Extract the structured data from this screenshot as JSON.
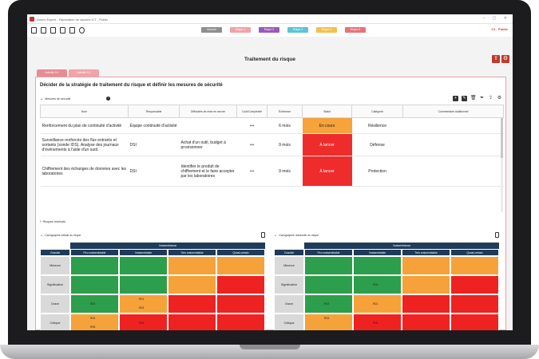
{
  "window": {
    "title": "Arinex Expert - Fabrication de vaccins ICT - Public"
  },
  "nav_tabs": [
    {
      "label": "Accueil",
      "color": "#8e8e8e"
    },
    {
      "label": "Etape 1",
      "color": "#f1a3a8"
    },
    {
      "label": "Etape 2",
      "color": "#9b59b6"
    },
    {
      "label": "Etape 3",
      "color": "#5dc3d6"
    },
    {
      "label": "Etape 4",
      "color": "#f2c14e"
    },
    {
      "label": "Etape 5",
      "color": "#e8727a"
    }
  ],
  "version": "C1 - Public",
  "page_title": "Traitement du risque",
  "sub_tabs": [
    "Activité 5.1",
    "Activité 5.2"
  ],
  "card_title": "Décider de la stratégie de traitement du risque et définir les mesures de sécurité",
  "section_measures": "Mesures de sécurité",
  "table": {
    "headers": [
      "Nom",
      "Responsable",
      "Difficultés de mise en œuvre",
      "Coût/Complexité",
      "Échéance",
      "Statut",
      "Catégorie",
      "Commentaire additionnel"
    ],
    "rows": [
      {
        "nom": "Renforcement du plan de continuité d'activité",
        "responsable": "Équipe continuité d'activité",
        "difficulte": "",
        "cout": "++",
        "echeance": "6 mois",
        "statut": "En cours",
        "categorie": "Résilience",
        "commentaire": ""
      },
      {
        "nom": "Surveillance renforcée des flux entrants et sortants (sonde IDS). Analyse des journaux d'événements à l'aide d'un outil.",
        "responsable": "DSI",
        "difficulte": "Achat d'un outil, budget à provisionner",
        "cout": "++",
        "echeance": "9 mois",
        "statut": "À lancer",
        "categorie": "Défense",
        "commentaire": ""
      },
      {
        "nom": "Chiffrement des échanges de données avec les laboratoires",
        "responsable": "DSI",
        "difficulte": "Identifier le produit de chiffrement et le faire accepter par les laboratoires",
        "cout": "++",
        "echeance": "9 mois",
        "statut": "À lancer",
        "categorie": "Protection",
        "commentaire": ""
      }
    ]
  },
  "section_residual": "Risques résiduels",
  "heatmaps": [
    {
      "title": "Cartographie initiale du risque"
    },
    {
      "title": "Cartographie résiduelle du risque"
    }
  ],
  "heatmap_labels": {
    "top": "Vraisemblance",
    "corner": "Gravité",
    "columns": [
      "Peu vraisemblable",
      "Vraisemblable",
      "Très vraisemblable",
      "Quasi-certain"
    ],
    "rows": [
      "Mineure",
      "Significative",
      "Grave",
      "Critique"
    ]
  },
  "heatmap_initial_tags": {
    "r2c0": "R02",
    "r2c1a": "R01",
    "r2c1b": "R03",
    "r3c0a": "R04",
    "r3c0b": "R05",
    "r3c1": "R06"
  },
  "heatmap_residual_tags": {
    "r1c1": "R03",
    "r2c0": "R02",
    "r2c1": "R01",
    "r3c0": "R04",
    "r3c1": "R05"
  }
}
